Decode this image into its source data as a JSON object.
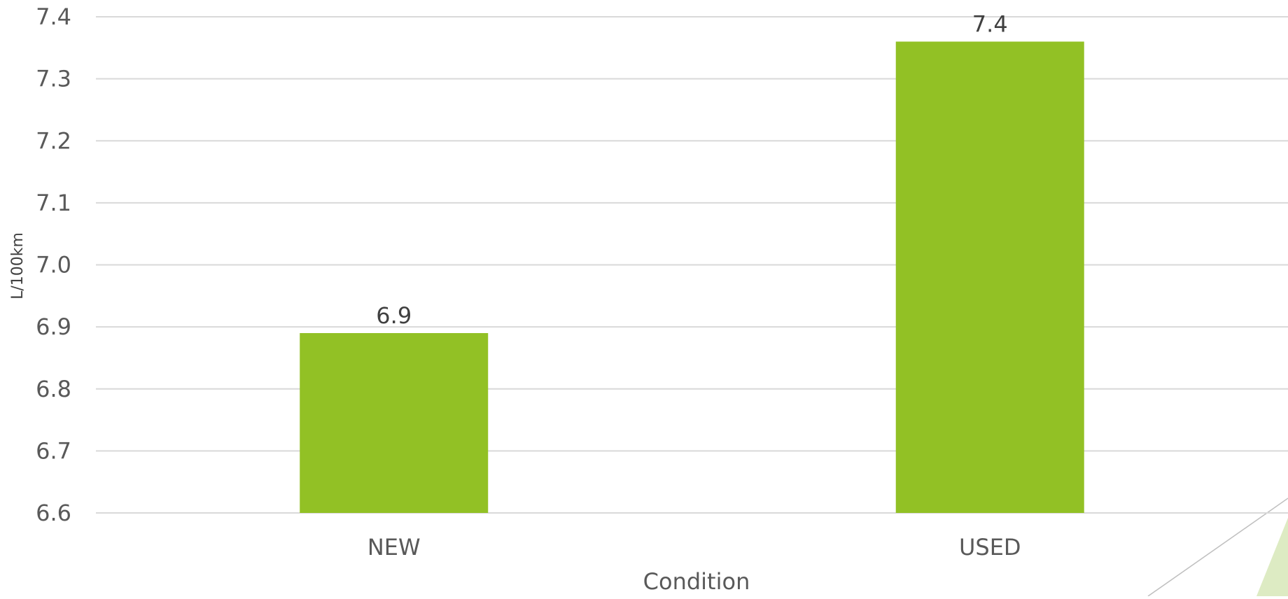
{
  "chart_data": {
    "type": "bar",
    "categories": [
      "NEW",
      "USED"
    ],
    "values": [
      6.89,
      7.36
    ],
    "data_labels": [
      "6.9",
      "7.4"
    ],
    "xlabel": "Condition",
    "ylabel": "L/100km",
    "ylim": [
      6.6,
      7.4
    ],
    "y_ticks": [
      "6.6",
      "6.7",
      "6.8",
      "6.9",
      "7.0",
      "7.1",
      "7.2",
      "7.3",
      "7.4"
    ],
    "grid": true,
    "legend": "none",
    "colors": {
      "bar": "#92C125",
      "grid": "#D9D9D9",
      "decoration_fill": "#DDEBC3",
      "decoration_line": "#BFBFBF"
    }
  }
}
